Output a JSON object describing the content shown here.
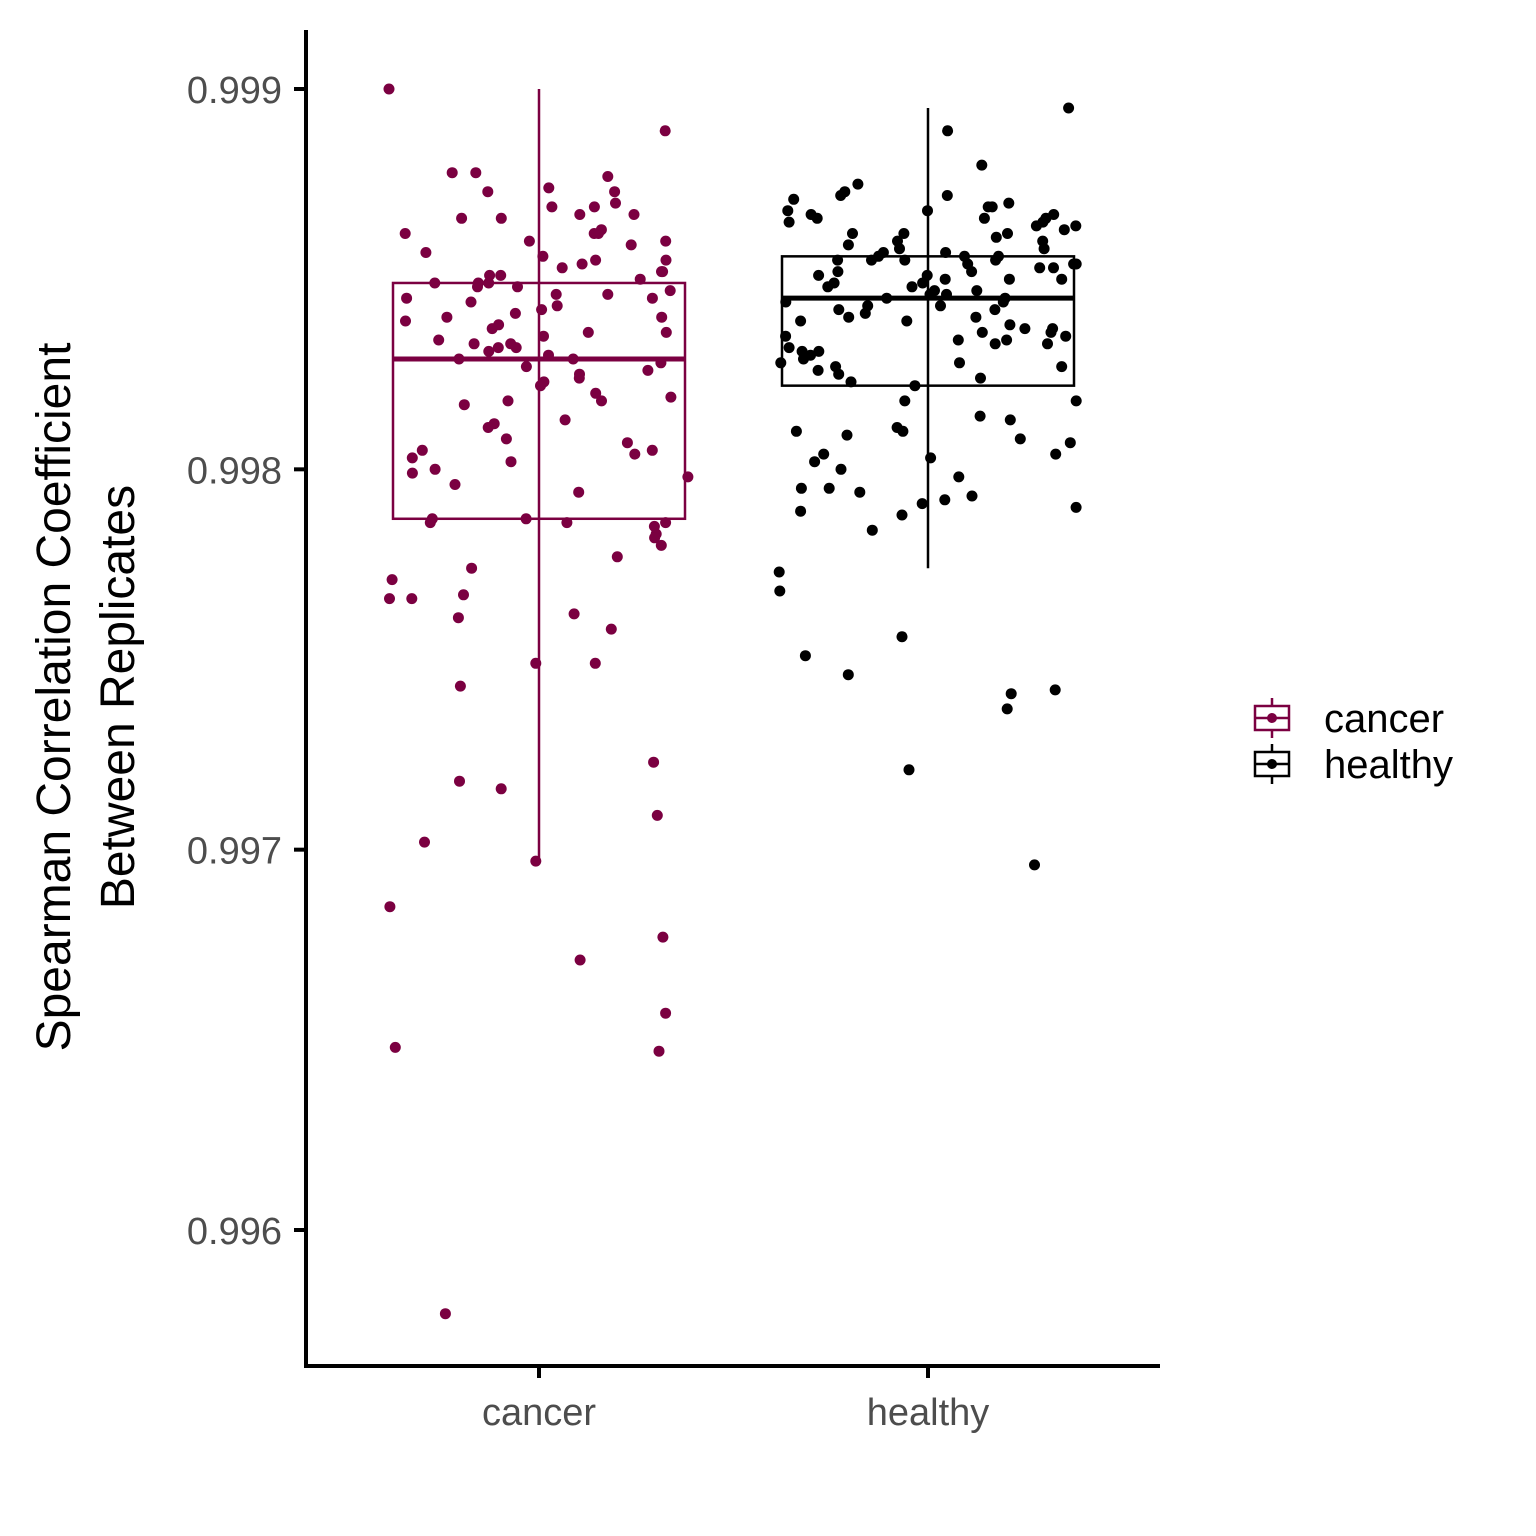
{
  "chart_data": {
    "type": "boxplot",
    "ylabel": [
      "Spearman Correlation Coefficient",
      "Between Replicates"
    ],
    "xlabel": "",
    "categories": [
      "cancer",
      "healthy"
    ],
    "y_ticks": [
      "0.996",
      "0.997",
      "0.998",
      "0.999"
    ],
    "ylim": [
      0.99564,
      0.99916
    ],
    "grid": false,
    "legend": {
      "position": "right",
      "entries": [
        "cancer",
        "healthy"
      ]
    },
    "colors": {
      "cancer": "#7b0041",
      "healthy": "#000000"
    },
    "boxes": [
      {
        "name": "cancer",
        "whisker_low": 0.99697,
        "q1": 0.99787,
        "median": 0.99829,
        "q3": 0.99849,
        "whisker_high": 0.999
      },
      {
        "name": "healthy",
        "whisker_low": 0.99774,
        "q1": 0.99822,
        "median": 0.99845,
        "q3": 0.99856,
        "whisker_high": 0.99895
      }
    ],
    "points": {
      "cancer": [
        0.999,
        0.99889,
        0.99878,
        0.99878,
        0.99877,
        0.99874,
        0.99873,
        0.99873,
        0.9987,
        0.99869,
        0.99869,
        0.99867,
        0.99867,
        0.99866,
        0.99866,
        0.99863,
        0.99862,
        0.99862,
        0.99862,
        0.9986,
        0.9986,
        0.99859,
        0.99857,
        0.99856,
        0.99855,
        0.99855,
        0.99854,
        0.99853,
        0.99852,
        0.99852,
        0.99851,
        0.99851,
        0.9985,
        0.99849,
        0.99849,
        0.99849,
        0.99848,
        0.99848,
        0.99847,
        0.99846,
        0.99846,
        0.99845,
        0.99845,
        0.99844,
        0.99843,
        0.99842,
        0.99841,
        0.9984,
        0.9984,
        0.99839,
        0.99838,
        0.99837,
        0.99836,
        0.99836,
        0.99835,
        0.99834,
        0.99833,
        0.99833,
        0.99832,
        0.99832,
        0.99831,
        0.9983,
        0.99829,
        0.99829,
        0.99828,
        0.99827,
        0.99826,
        0.99825,
        0.99824,
        0.99823,
        0.99822,
        0.9982,
        0.99819,
        0.99818,
        0.99818,
        0.99817,
        0.99813,
        0.99812,
        0.99811,
        0.99808,
        0.99807,
        0.99805,
        0.99805,
        0.99804,
        0.99803,
        0.99802,
        0.998,
        0.99799,
        0.99798,
        0.99796,
        0.99794,
        0.99787,
        0.99787,
        0.99786,
        0.99786,
        0.99786,
        0.99785,
        0.99783,
        0.99782,
        0.9978,
        0.99777,
        0.99774,
        0.99771,
        0.99767,
        0.99766,
        0.99766,
        0.99762,
        0.99761,
        0.99758,
        0.99749,
        0.99749,
        0.99743,
        0.99723,
        0.99718,
        0.99716,
        0.99709,
        0.99702,
        0.99697,
        0.99685,
        0.99677,
        0.99671,
        0.99657,
        0.99648,
        0.99647,
        0.99578
      ],
      "healthy": [
        0.99895,
        0.99889,
        0.9988,
        0.99875,
        0.99873,
        0.99872,
        0.99872,
        0.99871,
        0.9987,
        0.99869,
        0.99869,
        0.99868,
        0.99868,
        0.99867,
        0.99867,
        0.99866,
        0.99866,
        0.99866,
        0.99865,
        0.99865,
        0.99864,
        0.99864,
        0.99863,
        0.99862,
        0.99862,
        0.99862,
        0.99861,
        0.9986,
        0.9986,
        0.99859,
        0.99858,
        0.99858,
        0.99857,
        0.99857,
        0.99856,
        0.99856,
        0.99856,
        0.99855,
        0.99855,
        0.99855,
        0.99855,
        0.99854,
        0.99854,
        0.99854,
        0.99853,
        0.99853,
        0.99852,
        0.99852,
        0.99851,
        0.99851,
        0.9985,
        0.9985,
        0.9985,
        0.99849,
        0.99849,
        0.99848,
        0.99848,
        0.99847,
        0.99847,
        0.99846,
        0.99846,
        0.99845,
        0.99845,
        0.99844,
        0.99844,
        0.99843,
        0.99843,
        0.99842,
        0.99842,
        0.99841,
        0.9984,
        0.9984,
        0.99839,
        0.99839,
        0.99838,
        0.99837,
        0.99837,
        0.99836,
        0.99836,
        0.99835,
        0.99835,
        0.99834,
        0.99834,
        0.99833,
        0.99833,
        0.99832,
        0.99831,
        0.99831,
        0.9983,
        0.99829,
        0.99828,
        0.99828,
        0.99827,
        0.99827,
        0.99826,
        0.99825,
        0.99824,
        0.99823,
        0.99822,
        0.99818,
        0.99818,
        0.99814,
        0.99813,
        0.99811,
        0.9981,
        0.9981,
        0.99809,
        0.99808,
        0.99807,
        0.99804,
        0.99804,
        0.99803,
        0.99802,
        0.998,
        0.99798,
        0.99795,
        0.99795,
        0.99794,
        0.99793,
        0.99792,
        0.99791,
        0.9979,
        0.99789,
        0.99788,
        0.99784,
        0.99773,
        0.99768,
        0.99756,
        0.99751,
        0.99746,
        0.99742,
        0.99741,
        0.99737,
        0.99721,
        0.99696
      ]
    }
  }
}
